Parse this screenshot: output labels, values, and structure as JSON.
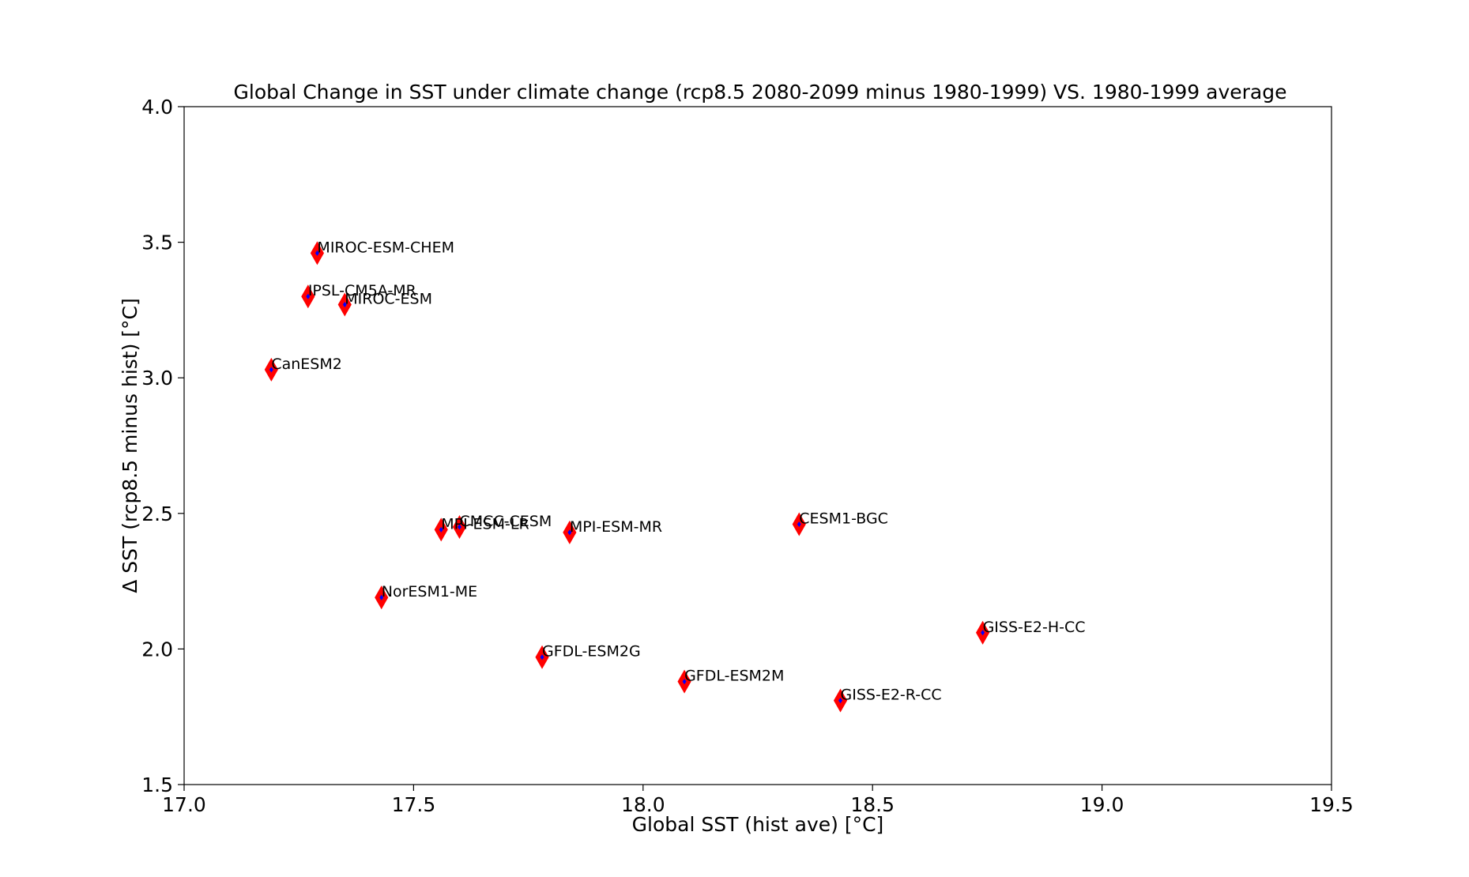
{
  "chart_data": {
    "type": "scatter",
    "title": "Global Change in SST under climate change (rcp8.5 2080-2099 minus 1980-1999) VS. 1980-1999 average",
    "xlabel": "Global SST (hist ave) [°C]",
    "ylabel": "Δ SST (rcp8.5 minus hist) [°C]",
    "xlim": [
      17.0,
      19.5
    ],
    "ylim": [
      1.5,
      4.0
    ],
    "xticks": [
      17.0,
      17.5,
      18.0,
      18.5,
      19.0,
      19.5
    ],
    "xtick_labels": [
      "17.0",
      "17.5",
      "18.0",
      "18.5",
      "19.0",
      "19.5"
    ],
    "yticks": [
      1.5,
      2.0,
      2.5,
      3.0,
      3.5,
      4.0
    ],
    "ytick_labels": [
      "1.5",
      "2.0",
      "2.5",
      "3.0",
      "3.5",
      "4.0"
    ],
    "grid": false,
    "marker_color": "#ff0000",
    "inner_marker_color": "#0000ff",
    "points": [
      {
        "label": "MIROC-ESM-CHEM",
        "x": 17.29,
        "y": 3.46
      },
      {
        "label": "IPSL-CM5A-MR",
        "x": 17.27,
        "y": 3.3
      },
      {
        "label": "MIROC-ESM",
        "x": 17.35,
        "y": 3.27
      },
      {
        "label": "CanESM2",
        "x": 17.19,
        "y": 3.03
      },
      {
        "label": "MPI-ESM-LR",
        "x": 17.56,
        "y": 2.44
      },
      {
        "label": "CMCC-CESM",
        "x": 17.6,
        "y": 2.45
      },
      {
        "label": "MPI-ESM-MR",
        "x": 17.84,
        "y": 2.43
      },
      {
        "label": "CESM1-BGC",
        "x": 18.34,
        "y": 2.46
      },
      {
        "label": "NorESM1-ME",
        "x": 17.43,
        "y": 2.19
      },
      {
        "label": "GISS-E2-H-CC",
        "x": 18.74,
        "y": 2.06
      },
      {
        "label": "GFDL-ESM2G",
        "x": 17.78,
        "y": 1.97
      },
      {
        "label": "GFDL-ESM2M",
        "x": 18.09,
        "y": 1.88
      },
      {
        "label": "GISS-E2-R-CC",
        "x": 18.43,
        "y": 1.81
      }
    ]
  }
}
